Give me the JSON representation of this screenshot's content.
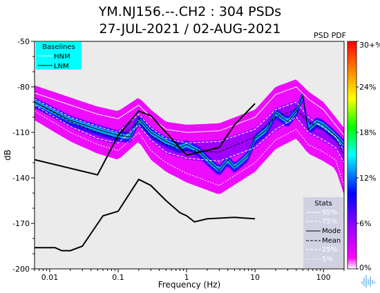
{
  "header": {
    "title_line1": "YM.NJ156.--.CH2 : 304 PSDs",
    "title_line2": "27-JUL-2021 / 02-AUG-2021",
    "pdf_label": "PSD PDF"
  },
  "chart_data": {
    "type": "heatmap",
    "xlabel": "Frequency (Hz)",
    "ylabel": "dB",
    "x_scale": "log",
    "xlim": [
      0.006,
      200
    ],
    "ylim": [
      -200,
      -50
    ],
    "x_ticks": [
      {
        "value": 0.01,
        "label": "0.01"
      },
      {
        "value": 0.1,
        "label": "0.1"
      },
      {
        "value": 1,
        "label": "1"
      },
      {
        "value": 10,
        "label": "10"
      },
      {
        "value": 100,
        "label": "100"
      }
    ],
    "y_ticks": [
      {
        "value": -50,
        "label": "-50"
      },
      {
        "value": -80,
        "label": "-80"
      },
      {
        "value": -110,
        "label": "-110"
      },
      {
        "value": -140,
        "label": "-140"
      },
      {
        "value": -170,
        "label": "-170"
      },
      {
        "value": -200,
        "label": "-200"
      }
    ],
    "grid": false,
    "baselines": {
      "title": "Baselines",
      "entries": [
        {
          "name": "HNM",
          "color": "#ffffff"
        },
        {
          "name": "LNM",
          "color": "#000000"
        }
      ],
      "legend_color": "#00ffff",
      "HNM": [
        [
          0.006,
          -128
        ],
        [
          0.05,
          -138
        ],
        [
          0.1,
          -112
        ],
        [
          0.2,
          -96
        ],
        [
          0.3,
          -99
        ],
        [
          1.0,
          -125
        ],
        [
          3.0,
          -120
        ],
        [
          5.0,
          -105
        ],
        [
          10.0,
          -91
        ]
      ],
      "LNM": [
        [
          0.006,
          -186
        ],
        [
          0.012,
          -186
        ],
        [
          0.015,
          -188
        ],
        [
          0.02,
          -188
        ],
        [
          0.03,
          -185
        ],
        [
          0.06,
          -165
        ],
        [
          0.1,
          -162
        ],
        [
          0.2,
          -141
        ],
        [
          0.3,
          -145
        ],
        [
          0.5,
          -155
        ],
        [
          0.8,
          -163
        ],
        [
          1.0,
          -165
        ],
        [
          1.3,
          -169
        ],
        [
          2.0,
          -167
        ],
        [
          5.0,
          -166
        ],
        [
          10.0,
          -167
        ]
      ]
    },
    "stats": {
      "title": "Stats",
      "entries": [
        "95%",
        "75%",
        "Mode",
        "Mean",
        "25%",
        "5%"
      ],
      "p95": [
        [
          0.006,
          -84
        ],
        [
          0.02,
          -92
        ],
        [
          0.05,
          -98
        ],
        [
          0.1,
          -101
        ],
        [
          0.2,
          -92
        ],
        [
          0.3,
          -100
        ],
        [
          0.5,
          -108
        ],
        [
          1,
          -110
        ],
        [
          3,
          -109
        ],
        [
          10,
          -100
        ],
        [
          20,
          -85
        ],
        [
          40,
          -80
        ],
        [
          60,
          -88
        ],
        [
          100,
          -95
        ],
        [
          150,
          -105
        ],
        [
          200,
          -112
        ]
      ],
      "p75": [
        [
          0.006,
          -88
        ],
        [
          0.02,
          -100
        ],
        [
          0.05,
          -106
        ],
        [
          0.1,
          -110
        ],
        [
          0.2,
          -98
        ],
        [
          0.3,
          -107
        ],
        [
          0.5,
          -114
        ],
        [
          1,
          -117
        ],
        [
          3,
          -116
        ],
        [
          10,
          -108
        ],
        [
          20,
          -95
        ],
        [
          40,
          -90
        ],
        [
          60,
          -100
        ],
        [
          100,
          -107
        ],
        [
          150,
          -113
        ],
        [
          200,
          -122
        ]
      ],
      "mode": [
        [
          0.006,
          -90
        ],
        [
          0.02,
          -102
        ],
        [
          0.05,
          -108
        ],
        [
          0.1,
          -112
        ],
        [
          0.15,
          -113
        ],
        [
          0.2,
          -101
        ],
        [
          0.3,
          -110
        ],
        [
          0.5,
          -116
        ],
        [
          0.8,
          -120
        ],
        [
          1.0,
          -118
        ],
        [
          1.5,
          -122
        ],
        [
          2,
          -128
        ],
        [
          3,
          -135
        ],
        [
          4,
          -128
        ],
        [
          5,
          -133
        ],
        [
          8,
          -125
        ],
        [
          10,
          -114
        ],
        [
          15,
          -108
        ],
        [
          20,
          -97
        ],
        [
          30,
          -103
        ],
        [
          40,
          -96
        ],
        [
          50,
          -86
        ],
        [
          60,
          -108
        ],
        [
          80,
          -103
        ],
        [
          100,
          -105
        ],
        [
          150,
          -112
        ],
        [
          200,
          -118
        ]
      ],
      "mean": [
        [
          0.006,
          -90
        ],
        [
          0.02,
          -103
        ],
        [
          0.05,
          -110
        ],
        [
          0.1,
          -114
        ],
        [
          0.2,
          -103
        ],
        [
          0.3,
          -112
        ],
        [
          0.5,
          -118
        ],
        [
          1,
          -122
        ],
        [
          3,
          -123
        ],
        [
          10,
          -113
        ],
        [
          20,
          -100
        ],
        [
          40,
          -95
        ],
        [
          60,
          -103
        ],
        [
          100,
          -108
        ],
        [
          150,
          -114
        ],
        [
          200,
          -125
        ]
      ],
      "p25": [
        [
          0.006,
          -92
        ],
        [
          0.02,
          -106
        ],
        [
          0.05,
          -114
        ],
        [
          0.1,
          -117
        ],
        [
          0.2,
          -105
        ],
        [
          0.3,
          -115
        ],
        [
          0.5,
          -123
        ],
        [
          1,
          -127
        ],
        [
          3,
          -129
        ],
        [
          10,
          -120
        ],
        [
          20,
          -108
        ],
        [
          40,
          -100
        ],
        [
          60,
          -110
        ],
        [
          100,
          -115
        ],
        [
          150,
          -120
        ],
        [
          200,
          -130
        ]
      ],
      "p5": [
        [
          0.006,
          -96
        ],
        [
          0.02,
          -110
        ],
        [
          0.05,
          -118
        ],
        [
          0.1,
          -122
        ],
        [
          0.2,
          -110
        ],
        [
          0.3,
          -122
        ],
        [
          0.5,
          -130
        ],
        [
          1,
          -137
        ],
        [
          3,
          -145
        ],
        [
          10,
          -130
        ],
        [
          20,
          -115
        ],
        [
          40,
          -108
        ],
        [
          60,
          -118
        ],
        [
          100,
          -123
        ],
        [
          150,
          -128
        ],
        [
          200,
          -145
        ]
      ]
    },
    "colorbar": {
      "labels": [
        "0%",
        "6%",
        "12%",
        "18%",
        "24%",
        "30+%"
      ],
      "values": [
        0,
        6,
        12,
        18,
        24,
        30
      ],
      "colors": [
        "#ffffff",
        "#ff00ff",
        "#8800ff",
        "#0000ff",
        "#00ffff",
        "#00ff00",
        "#ffff00",
        "#ff8800",
        "#ff0000"
      ]
    }
  }
}
